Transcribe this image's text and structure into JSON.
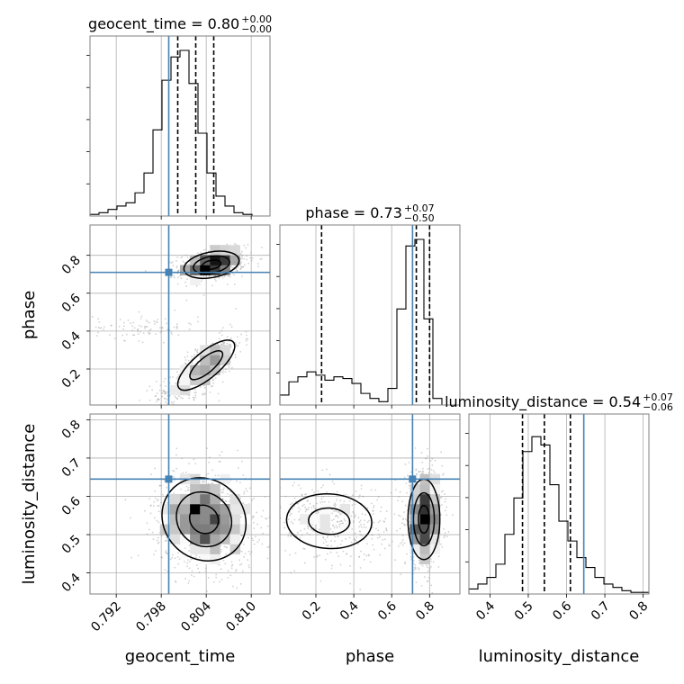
{
  "chart_data": {
    "type": "corner",
    "parameters": [
      {
        "key": "geocent_time",
        "label": "geocent_time",
        "range": [
          0.7885,
          0.8125
        ],
        "truth": 0.799,
        "title_main": "geocent_time = 0.80",
        "title_sup": "+0.00",
        "title_sub": "−0.00",
        "ticks": [
          {
            "v": 0.792,
            "label": "0.792"
          },
          {
            "v": 0.798,
            "label": "0.798"
          },
          {
            "v": 0.804,
            "label": "0.804"
          },
          {
            "v": 0.81,
            "label": "0.810"
          }
        ],
        "quantiles": [
          0.8002,
          0.8026,
          0.805
        ],
        "hist": [
          0.01,
          0.02,
          0.04,
          0.06,
          0.08,
          0.14,
          0.26,
          0.52,
          0.82,
          0.96,
          1.0,
          0.8,
          0.5,
          0.26,
          0.12,
          0.06,
          0.02,
          0.01,
          0.0,
          0.0
        ]
      },
      {
        "key": "phase",
        "label": "phase",
        "range": [
          0.01,
          0.96
        ],
        "truth": 0.71,
        "title_main": "phase = 0.73",
        "title_sup": "+0.07",
        "title_sub": "−0.50",
        "ticks": [
          {
            "v": 0.2,
            "label": "0.2"
          },
          {
            "v": 0.4,
            "label": "0.4"
          },
          {
            "v": 0.6,
            "label": "0.6"
          },
          {
            "v": 0.8,
            "label": "0.8"
          }
        ],
        "quantiles": [
          0.23,
          0.73,
          0.8
        ],
        "hist": [
          0.06,
          0.14,
          0.17,
          0.2,
          0.18,
          0.15,
          0.17,
          0.16,
          0.13,
          0.07,
          0.04,
          0.02,
          0.1,
          0.58,
          0.96,
          1.0,
          0.52,
          0.04,
          0.0,
          0.0
        ]
      },
      {
        "key": "luminosity_distance",
        "label": "luminosity_distance",
        "range": [
          0.345,
          0.815
        ],
        "truth": 0.645,
        "title_main": "luminosity_distance = 0.54",
        "title_sup": "+0.07",
        "title_sub": "−0.06",
        "ticks": [
          {
            "v": 0.4,
            "label": "0.4"
          },
          {
            "v": 0.5,
            "label": "0.5"
          },
          {
            "v": 0.6,
            "label": "0.6"
          },
          {
            "v": 0.7,
            "label": "0.7"
          },
          {
            "v": 0.8,
            "label": "0.8"
          }
        ],
        "quantiles": [
          0.485,
          0.542,
          0.61
        ],
        "hist": [
          0.03,
          0.06,
          0.1,
          0.18,
          0.36,
          0.58,
          0.86,
          0.95,
          0.9,
          0.66,
          0.44,
          0.32,
          0.22,
          0.16,
          0.1,
          0.06,
          0.04,
          0.02,
          0.01,
          0.01
        ]
      }
    ],
    "pairs": [
      {
        "x": "geocent_time",
        "y": "phase",
        "clusters": [
          {
            "cx": 0.8048,
            "cy": 0.75,
            "sx": 0.0022,
            "sy": 0.042,
            "rho": 0.3,
            "n": 720
          },
          {
            "cx": 0.804,
            "cy": 0.22,
            "sx": 0.0024,
            "sy": 0.085,
            "rho": 0.75,
            "n": 480
          },
          {
            "cx": 0.796,
            "cy": 0.42,
            "sx": 0.0035,
            "sy": 0.035,
            "rho": 0.0,
            "n": 90
          },
          {
            "cx": 0.8,
            "cy": 0.07,
            "sx": 0.0025,
            "sy": 0.03,
            "rho": 0.0,
            "n": 70
          }
        ],
        "contours": [
          {
            "cx": 0.8047,
            "cy": 0.75,
            "sx": 0.0021,
            "sy": 0.041,
            "rho": 0.3,
            "levels": [
              0.6,
              1.15,
              1.75
            ]
          },
          {
            "cx": 0.804,
            "cy": 0.22,
            "sx": 0.0023,
            "sy": 0.08,
            "rho": 0.76,
            "levels": [
              0.95,
              1.65
            ]
          }
        ]
      },
      {
        "x": "geocent_time",
        "y": "luminosity_distance",
        "clusters": [
          {
            "cx": 0.8038,
            "cy": 0.54,
            "sx": 0.0033,
            "sy": 0.065,
            "rho": -0.1,
            "n": 1100
          }
        ],
        "contours": [
          {
            "cx": 0.8037,
            "cy": 0.54,
            "sx": 0.0032,
            "sy": 0.062,
            "rho": -0.1,
            "levels": [
              0.6,
              1.15,
              1.75
            ]
          }
        ]
      },
      {
        "x": "phase",
        "y": "luminosity_distance",
        "clusters": [
          {
            "cx": 0.77,
            "cy": 0.54,
            "sx": 0.05,
            "sy": 0.062,
            "rho": 0.0,
            "n": 800
          },
          {
            "cx": 0.28,
            "cy": 0.535,
            "sx": 0.15,
            "sy": 0.05,
            "rho": -0.05,
            "n": 420
          }
        ],
        "contours": [
          {
            "cx": 0.77,
            "cy": 0.54,
            "sx": 0.048,
            "sy": 0.06,
            "rho": 0.0,
            "levels": [
              0.6,
              1.15,
              1.75
            ]
          },
          {
            "cx": 0.27,
            "cy": 0.535,
            "sx": 0.145,
            "sy": 0.046,
            "rho": -0.05,
            "levels": [
              0.75,
              1.55
            ]
          }
        ]
      }
    ],
    "colors": {
      "truth": "#4682b4",
      "hist": "#000000",
      "points": "#9a9a9a",
      "grid": "#b0b0b0",
      "axes": "#808080"
    },
    "grid": true
  }
}
